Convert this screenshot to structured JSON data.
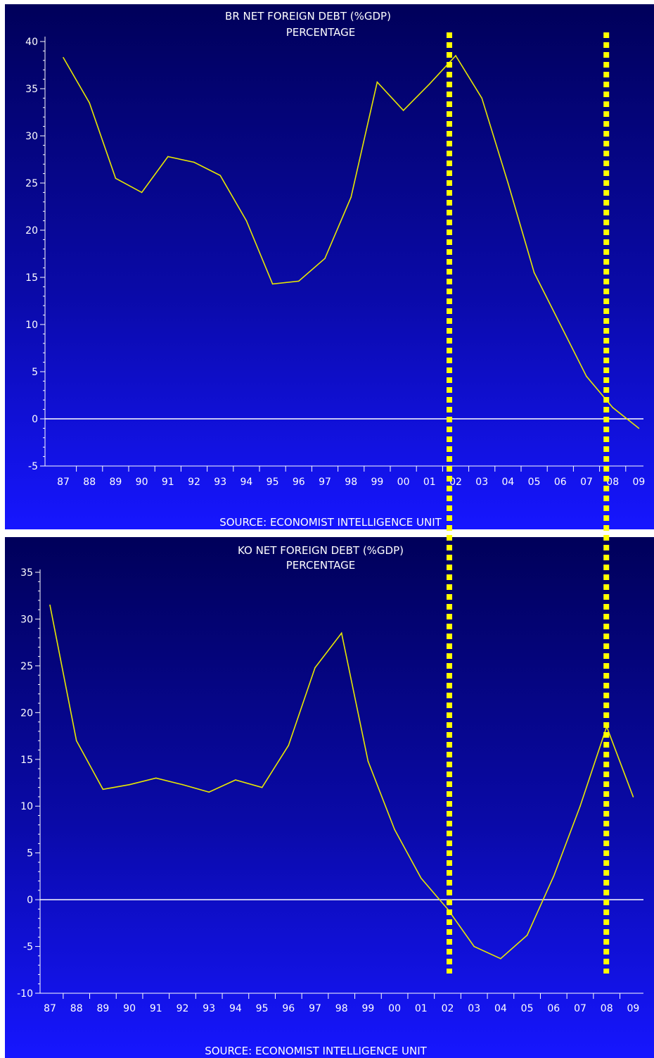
{
  "chart_data": [
    {
      "type": "line",
      "title": "BR NET FOREIGN DEBT (%GDP)",
      "subtitle": "PERCENTAGE",
      "source": "SOURCE: ECONOMIST INTELLIGENCE UNIT",
      "categories": [
        "87",
        "88",
        "89",
        "90",
        "91",
        "92",
        "93",
        "94",
        "95",
        "96",
        "97",
        "98",
        "99",
        "00",
        "01",
        "02",
        "03",
        "04",
        "05",
        "06",
        "07",
        "08",
        "09"
      ],
      "y_ticks": [
        "40",
        "35",
        "30",
        "25",
        "20",
        "15",
        "10",
        "5",
        "0",
        "-5"
      ],
      "ylim": [
        -5,
        40
      ],
      "series": [
        {
          "values": [
            38.3,
            33.5,
            25.5,
            24.0,
            27.8,
            27.2,
            25.8,
            21.0,
            14.3,
            14.6,
            17.0,
            23.5,
            35.7,
            32.7,
            35.5,
            38.5,
            34.0,
            25.0,
            15.5,
            10.0,
            4.5,
            1.2,
            -1.0
          ]
        }
      ],
      "zero_line": true,
      "line_color": "#e8e800",
      "marker_color": "#ffff00"
    },
    {
      "type": "line",
      "title": "KO NET FOREIGN DEBT (%GDP)",
      "subtitle": "PERCENTAGE",
      "source": "SOURCE: ECONOMIST INTELLIGENCE UNIT",
      "categories": [
        "87",
        "88",
        "89",
        "90",
        "91",
        "92",
        "93",
        "94",
        "95",
        "96",
        "97",
        "98",
        "99",
        "00",
        "01",
        "02",
        "03",
        "04",
        "05",
        "06",
        "07",
        "08",
        "09"
      ],
      "y_ticks": [
        "35",
        "30",
        "25",
        "20",
        "15",
        "10",
        "5",
        "0",
        "-5",
        "-10"
      ],
      "ylim": [
        -10,
        35
      ],
      "series": [
        {
          "values": [
            31.5,
            17.0,
            11.8,
            12.3,
            13.0,
            12.3,
            11.5,
            12.8,
            12.0,
            16.5,
            24.8,
            28.5,
            14.8,
            7.5,
            2.3,
            -1.0,
            -5.0,
            -6.3,
            -3.8,
            2.5,
            10.0,
            18.5,
            11.0
          ]
        }
      ],
      "zero_line": true,
      "line_color": "#e8e800",
      "marker_color": "#ffff00"
    }
  ],
  "markers": [
    "02",
    "08"
  ]
}
